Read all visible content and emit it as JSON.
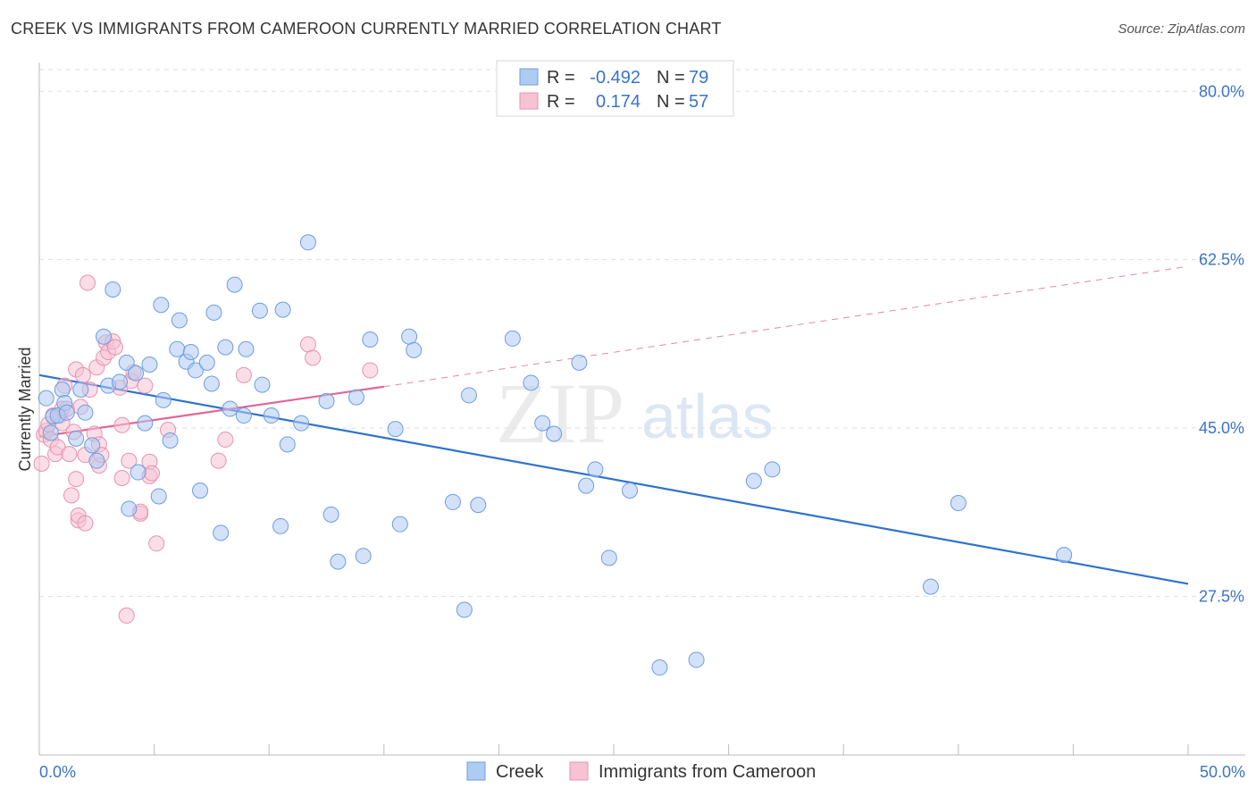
{
  "title": "CREEK VS IMMIGRANTS FROM CAMEROON CURRENTLY MARRIED CORRELATION CHART",
  "source": "Source: ZipAtlas.com",
  "watermark": {
    "zip": "ZIP",
    "atlas": "atlas"
  },
  "colors": {
    "creek_fill": "#aecbf2",
    "creek_stroke": "#6d9de0",
    "creek_line": "#2f72d0",
    "cameroon_fill": "#f6c3d3",
    "cameroon_stroke": "#e991ae",
    "cameroon_line": "#e0669a",
    "axis_label": "#3a74c8",
    "grid": "#dddddd"
  },
  "legend": {
    "rows": [
      {
        "r_label": "R =",
        "r_value": "-0.492",
        "n_label": "N =",
        "n_value": "79"
      },
      {
        "r_label": "R =",
        "r_value": "0.174",
        "n_label": "N =",
        "n_value": "57"
      }
    ]
  },
  "chart_data": {
    "type": "scatter",
    "xlabel": "",
    "ylabel": "Currently Married",
    "xlim": [
      0,
      50
    ],
    "ylim": [
      11,
      83
    ],
    "x_tick_labels": [
      "0.0%",
      "50.0%"
    ],
    "y_ticks": [
      27.5,
      45.0,
      62.5,
      80.0
    ],
    "y_tick_labels": [
      "27.5%",
      "45.0%",
      "62.5%",
      "80.0%"
    ],
    "grid": true,
    "legend_position": "bottom-center",
    "series": [
      {
        "name": "Creek",
        "r": -0.492,
        "n": 79,
        "trend": {
          "x": [
            0,
            50
          ],
          "y": [
            50.5,
            28.8
          ]
        },
        "points": [
          [
            0.3,
            48.1
          ],
          [
            0.5,
            44.5
          ],
          [
            0.6,
            46.2
          ],
          [
            0.8,
            46.3
          ],
          [
            1.0,
            49.0
          ],
          [
            1.1,
            47.6
          ],
          [
            1.2,
            46.6
          ],
          [
            1.6,
            43.9
          ],
          [
            1.8,
            49.0
          ],
          [
            2.0,
            46.6
          ],
          [
            2.3,
            43.2
          ],
          [
            2.5,
            41.6
          ],
          [
            2.8,
            54.5
          ],
          [
            3.0,
            49.4
          ],
          [
            3.2,
            59.4
          ],
          [
            3.5,
            49.8
          ],
          [
            3.8,
            51.8
          ],
          [
            3.9,
            36.6
          ],
          [
            4.2,
            50.7
          ],
          [
            4.3,
            40.4
          ],
          [
            4.6,
            45.5
          ],
          [
            4.8,
            51.6
          ],
          [
            5.2,
            37.9
          ],
          [
            5.3,
            57.8
          ],
          [
            5.4,
            47.9
          ],
          [
            5.7,
            43.7
          ],
          [
            6.0,
            53.2
          ],
          [
            6.1,
            56.2
          ],
          [
            6.4,
            51.9
          ],
          [
            6.6,
            52.9
          ],
          [
            6.8,
            51.0
          ],
          [
            7.0,
            38.5
          ],
          [
            7.3,
            51.8
          ],
          [
            7.5,
            49.6
          ],
          [
            7.6,
            57.0
          ],
          [
            7.9,
            34.1
          ],
          [
            8.1,
            53.4
          ],
          [
            8.3,
            47.0
          ],
          [
            8.5,
            59.9
          ],
          [
            8.9,
            46.3
          ],
          [
            9.0,
            53.2
          ],
          [
            9.6,
            57.2
          ],
          [
            9.7,
            49.5
          ],
          [
            10.1,
            46.3
          ],
          [
            10.5,
            34.8
          ],
          [
            10.6,
            57.3
          ],
          [
            10.8,
            43.3
          ],
          [
            11.4,
            45.5
          ],
          [
            11.7,
            64.3
          ],
          [
            12.5,
            47.8
          ],
          [
            12.7,
            36.0
          ],
          [
            13.0,
            31.1
          ],
          [
            13.8,
            48.2
          ],
          [
            14.1,
            31.7
          ],
          [
            14.4,
            54.2
          ],
          [
            15.5,
            44.9
          ],
          [
            15.7,
            35.0
          ],
          [
            16.1,
            54.5
          ],
          [
            16.3,
            53.1
          ],
          [
            18.0,
            37.3
          ],
          [
            18.5,
            26.1
          ],
          [
            18.7,
            48.4
          ],
          [
            19.1,
            37.0
          ],
          [
            20.6,
            54.3
          ],
          [
            21.4,
            49.7
          ],
          [
            21.9,
            45.5
          ],
          [
            22.4,
            44.4
          ],
          [
            23.5,
            51.8
          ],
          [
            23.8,
            39.0
          ],
          [
            24.2,
            40.7
          ],
          [
            24.8,
            31.5
          ],
          [
            25.7,
            38.5
          ],
          [
            27.0,
            20.1
          ],
          [
            28.6,
            20.9
          ],
          [
            31.1,
            39.5
          ],
          [
            31.9,
            40.7
          ],
          [
            38.8,
            28.5
          ],
          [
            40.0,
            37.2
          ],
          [
            44.6,
            31.8
          ]
        ]
      },
      {
        "name": "Immigrants from Cameroon",
        "r": 0.174,
        "n": 57,
        "trend": {
          "x": [
            0,
            15
          ],
          "y": [
            44.1,
            49.3
          ],
          "dashed_to": {
            "x": 50,
            "y": 61.8
          }
        },
        "points": [
          [
            0.1,
            41.3
          ],
          [
            0.2,
            44.3
          ],
          [
            0.3,
            44.7
          ],
          [
            0.4,
            45.4
          ],
          [
            0.5,
            43.8
          ],
          [
            0.6,
            46.3
          ],
          [
            0.7,
            42.3
          ],
          [
            0.8,
            43.0
          ],
          [
            0.9,
            46.3
          ],
          [
            1.0,
            47.0
          ],
          [
            1.0,
            45.5
          ],
          [
            1.1,
            49.4
          ],
          [
            1.2,
            47.0
          ],
          [
            1.3,
            42.3
          ],
          [
            1.4,
            38.0
          ],
          [
            1.5,
            44.6
          ],
          [
            1.6,
            51.1
          ],
          [
            1.6,
            39.7
          ],
          [
            1.7,
            35.4
          ],
          [
            1.7,
            35.9
          ],
          [
            1.8,
            47.2
          ],
          [
            1.9,
            50.5
          ],
          [
            2.0,
            35.1
          ],
          [
            2.0,
            42.2
          ],
          [
            2.1,
            60.1
          ],
          [
            2.2,
            49.0
          ],
          [
            2.4,
            44.4
          ],
          [
            2.5,
            51.3
          ],
          [
            2.6,
            43.3
          ],
          [
            2.6,
            41.1
          ],
          [
            2.7,
            42.2
          ],
          [
            2.8,
            52.3
          ],
          [
            2.9,
            53.9
          ],
          [
            3.0,
            52.9
          ],
          [
            3.2,
            54.0
          ],
          [
            3.3,
            53.4
          ],
          [
            3.5,
            49.2
          ],
          [
            3.6,
            45.3
          ],
          [
            3.6,
            39.8
          ],
          [
            3.8,
            25.5
          ],
          [
            3.9,
            41.6
          ],
          [
            4.0,
            49.9
          ],
          [
            4.1,
            50.8
          ],
          [
            4.4,
            36.1
          ],
          [
            4.4,
            36.3
          ],
          [
            4.6,
            49.4
          ],
          [
            4.8,
            41.5
          ],
          [
            4.8,
            40.0
          ],
          [
            4.9,
            40.3
          ],
          [
            5.1,
            33.0
          ],
          [
            5.6,
            44.8
          ],
          [
            7.8,
            41.6
          ],
          [
            8.1,
            43.8
          ],
          [
            8.9,
            50.5
          ],
          [
            11.7,
            53.7
          ],
          [
            11.9,
            52.3
          ],
          [
            14.4,
            51.0
          ]
        ]
      }
    ]
  }
}
